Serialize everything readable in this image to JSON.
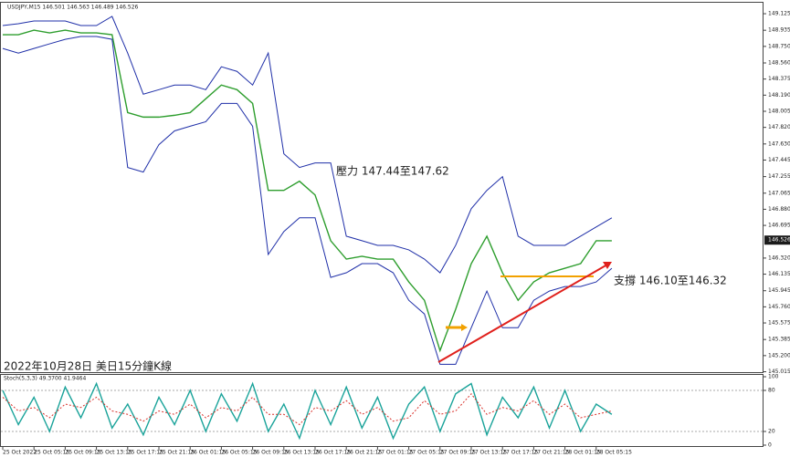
{
  "chart_data": {
    "type": "line",
    "title": "USDJPY,M15 146.501 146.563 146.489 146.526",
    "annotations": [
      "壓力 147.44至147.62",
      "支撐 146.10至146.32",
      "2022年10月28日 美日15分鐘K線"
    ],
    "current_price": 146.526,
    "categories": [
      "25 Oct 2022",
      null,
      "25 Oct 05:15",
      null,
      "25 Oct 09:15",
      null,
      "25 Oct 13:15",
      null,
      "25 Oct 17:15",
      null,
      "25 Oct 21:15",
      null,
      "26 Oct 01:15",
      null,
      "26 Oct 05:15",
      null,
      "26 Oct 09:15",
      null,
      "26 Oct 13:15",
      null,
      "26 Oct 17:15",
      null,
      "26 Oct 21:15",
      null,
      "27 Oct 01:15",
      null,
      "27 Oct 05:15",
      null,
      "27 Oct 09:15",
      null,
      "27 Oct 13:15",
      null,
      "27 Oct 17:15",
      null,
      "27 Oct 21:15",
      null,
      "28 Oct 01:15",
      null,
      "28 Oct 05:15",
      null
    ],
    "series": [
      {
        "name": "Close",
        "color": "#2e9e2e",
        "values": [
          148.884,
          148.884,
          148.936,
          148.905,
          148.936,
          148.905,
          148.905,
          148.884,
          147.99,
          147.938,
          147.938,
          147.959,
          147.99,
          148.148,
          148.306,
          148.253,
          148.095,
          147.097,
          147.097,
          147.202,
          147.044,
          146.519,
          146.308,
          146.34,
          146.308,
          146.308,
          146.046,
          145.835,
          145.258,
          145.731,
          146.256,
          146.571,
          146.151,
          145.835,
          146.046,
          146.151,
          146.203,
          146.256,
          146.519,
          146.519
        ]
      },
      {
        "name": "Upper band",
        "color": "#1f2fa8",
        "values": [
          148.989,
          149.01,
          149.041,
          149.041,
          149.041,
          148.989,
          148.989,
          149.094,
          148.673,
          148.201,
          148.253,
          148.306,
          148.306,
          148.253,
          148.516,
          148.463,
          148.306,
          148.673,
          147.517,
          147.36,
          147.412,
          147.412,
          146.571,
          146.519,
          146.466,
          146.466,
          146.414,
          146.308,
          146.151,
          146.466,
          146.887,
          147.097,
          147.255,
          146.571,
          146.466,
          146.466,
          146.466,
          146.571,
          146.677,
          146.782
        ]
      },
      {
        "name": "Lower band",
        "color": "#1f2fa8",
        "values": [
          148.726,
          148.673,
          148.726,
          148.779,
          148.831,
          148.863,
          148.863,
          148.831,
          147.36,
          147.307,
          147.622,
          147.78,
          147.833,
          147.885,
          148.095,
          148.095,
          147.833,
          146.361,
          146.624,
          146.782,
          146.782,
          146.098,
          146.151,
          146.256,
          146.256,
          146.151,
          145.835,
          145.678,
          145.1,
          145.1,
          145.52,
          145.941,
          145.52,
          145.52,
          145.835,
          145.941,
          145.993,
          145.993,
          146.046,
          146.203
        ]
      }
    ],
    "ylim": [
      145.01,
      149.251
    ],
    "yticks": [
      149.125,
      148.935,
      {
        "value": 148.75,
        "label": "148.750"
      },
      {
        "value": 148.56,
        "label": "148.560"
      },
      148.375,
      {
        "value": 148.19,
        "label": "148.190"
      },
      148.005,
      {
        "value": 147.82,
        "label": "147.820"
      },
      {
        "value": 147.63,
        "label": "147.630"
      },
      147.445,
      147.255,
      147.065,
      {
        "value": 146.88,
        "label": "146.880"
      },
      146.695,
      {
        "value": 146.32,
        "label": "146.320"
      },
      146.135,
      145.945,
      {
        "value": 145.76,
        "label": "145.760"
      },
      145.575,
      145.385,
      {
        "value": 145.2,
        "label": "145.200"
      },
      145.015
    ],
    "oscillator": {
      "title": "Stoch(5,3,3) 49.3700 41.9464",
      "ylim": [
        0,
        100
      ],
      "yticks": [
        100,
        80,
        20,
        0
      ],
      "series": [
        {
          "name": "%K",
          "color": "#1aa39a",
          "values": [
            80,
            30,
            70,
            20,
            85,
            40,
            90,
            25,
            60,
            15,
            70,
            30,
            80,
            20,
            75,
            35,
            90,
            20,
            60,
            10,
            80,
            30,
            85,
            25,
            70,
            10,
            60,
            85,
            20,
            75,
            90,
            15,
            70,
            40,
            85,
            25,
            80,
            20,
            60,
            45
          ]
        },
        {
          "name": "%D",
          "color": "#d9302a",
          "values": [
            70,
            50,
            55,
            40,
            60,
            55,
            70,
            50,
            45,
            35,
            50,
            45,
            60,
            40,
            55,
            50,
            70,
            45,
            45,
            30,
            55,
            50,
            65,
            45,
            55,
            35,
            40,
            65,
            45,
            50,
            75,
            45,
            55,
            50,
            65,
            45,
            60,
            40,
            45,
            50
          ]
        }
      ]
    }
  }
}
